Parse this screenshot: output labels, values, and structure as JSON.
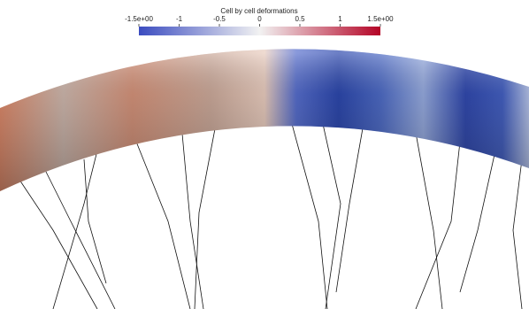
{
  "colorbar": {
    "title": "Cell by cell deformations",
    "range": [
      -1.5,
      1.5
    ],
    "ticks": [
      {
        "value": -1.5,
        "label": "-1.5e+00"
      },
      -1,
      -0.5,
      0,
      0.5,
      1,
      {
        "value": 1.5,
        "label": "1.5e+00"
      }
    ]
  }
}
